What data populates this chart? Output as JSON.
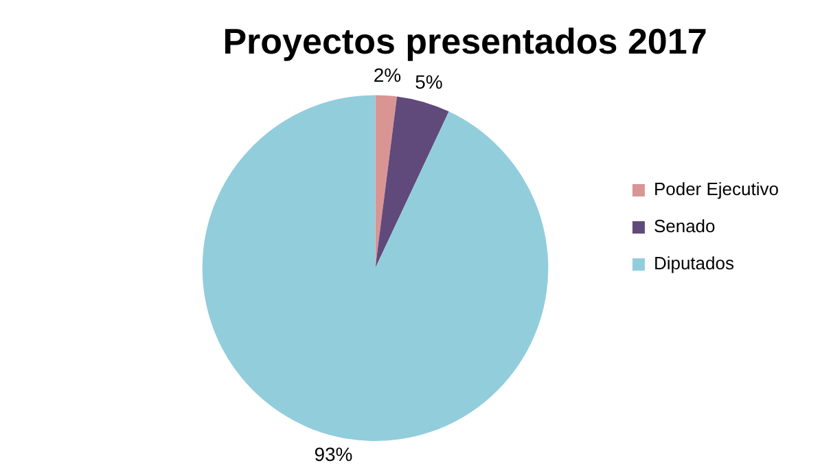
{
  "chart_data": {
    "type": "pie",
    "title": "Proyectos presentados 2017",
    "categories": [
      "Poder Ejecutivo",
      "Senado",
      "Diputados"
    ],
    "values": [
      2,
      5,
      93
    ],
    "colors": [
      "#d99594",
      "#604a7b",
      "#92cddc"
    ],
    "value_labels": [
      "2%",
      "5%",
      "93%"
    ],
    "legend": "right"
  }
}
